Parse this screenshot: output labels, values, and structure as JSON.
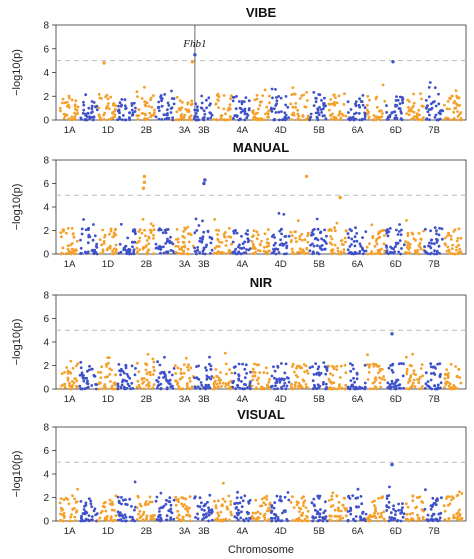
{
  "colors": {
    "orange": "#f4a02a",
    "blue": "#3f51c8",
    "threshold": "#bbbbbb"
  },
  "chromosomes": [
    "1A",
    "1B",
    "1D",
    "2A",
    "2B",
    "2D",
    "3A",
    "3B",
    "3D",
    "4A",
    "4B",
    "4D",
    "5A",
    "5B",
    "5D",
    "6A",
    "6B",
    "6D",
    "7A",
    "7B",
    "7D"
  ],
  "chromosome_labels_shown": [
    "1A",
    "1D",
    "2B",
    "3A",
    "3B",
    "4A",
    "4D",
    "5B",
    "6A",
    "6D",
    "7B"
  ],
  "x_axis_title": "Chromosome",
  "chart_data": [
    {
      "type": "scatter",
      "title": "VIBE",
      "ylabel": "−log10(p)",
      "ylim": [
        0,
        8
      ],
      "yticks": [
        0,
        2,
        4,
        6,
        8
      ],
      "threshold": 5,
      "annotation": {
        "text": "Fhb1",
        "chromosome": "3B",
        "position": 0.03
      },
      "significant_points": [
        {
          "chromosome": "1D",
          "position": 0.3,
          "value": 4.8
        },
        {
          "chromosome": "3A",
          "position": 0.9,
          "value": 4.9
        },
        {
          "chromosome": "3B",
          "position": 0.03,
          "value": 5.5
        },
        {
          "chromosome": "6D",
          "position": 0.35,
          "value": 4.9
        }
      ]
    },
    {
      "type": "scatter",
      "title": "MANUAL",
      "ylabel": "−log10(p)",
      "ylim": [
        0,
        8
      ],
      "yticks": [
        0,
        2,
        4,
        6,
        8
      ],
      "threshold": 5,
      "significant_points": [
        {
          "chromosome": "2B",
          "position": 0.4,
          "value": 6.6
        },
        {
          "chromosome": "2B",
          "position": 0.4,
          "value": 6.1
        },
        {
          "chromosome": "2B",
          "position": 0.35,
          "value": 5.6
        },
        {
          "chromosome": "3B",
          "position": 0.55,
          "value": 6.3
        },
        {
          "chromosome": "3B",
          "position": 0.5,
          "value": 6.0
        },
        {
          "chromosome": "5A",
          "position": 0.85,
          "value": 6.6
        },
        {
          "chromosome": "5D",
          "position": 0.6,
          "value": 4.8
        }
      ]
    },
    {
      "type": "scatter",
      "title": "NIR",
      "ylabel": "−log10(p)",
      "ylim": [
        0,
        8
      ],
      "yticks": [
        0,
        2,
        4,
        6,
        8
      ],
      "threshold": 5,
      "significant_points": [
        {
          "chromosome": "6D",
          "position": 0.3,
          "value": 4.7
        }
      ]
    },
    {
      "type": "scatter",
      "title": "VISUAL",
      "ylabel": "−log10(p)",
      "ylim": [
        0,
        8
      ],
      "yticks": [
        0,
        2,
        4,
        6,
        8
      ],
      "threshold": 5,
      "significant_points": [
        {
          "chromosome": "6D",
          "position": 0.3,
          "value": 4.8
        }
      ]
    }
  ]
}
